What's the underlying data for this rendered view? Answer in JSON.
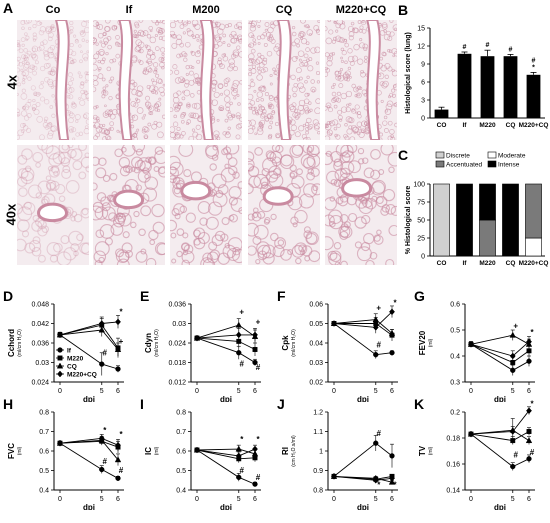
{
  "panels": {
    "A": "A",
    "B": "B",
    "C": "C",
    "D": "D",
    "E": "E",
    "F": "F",
    "G": "G",
    "H": "H",
    "I": "I",
    "J": "J",
    "K": "K"
  },
  "micrograph": {
    "columns": [
      "Co",
      "If",
      "M200",
      "CQ",
      "M220+CQ"
    ],
    "rows": [
      "4x",
      "40x"
    ],
    "colors": {
      "tissue": "#c98aa0",
      "background": "#f4ecef",
      "airway": "#ffffff"
    }
  },
  "chart_data": [
    {
      "id": "B",
      "type": "bar",
      "categories": [
        "CO",
        "If",
        "M220",
        "CQ",
        "M220+CQ"
      ],
      "values": [
        1.4,
        10.7,
        10.3,
        10.3,
        7.2
      ],
      "errors": [
        0.4,
        0.3,
        1.0,
        0.3,
        0.4
      ],
      "annotations": [
        "",
        "#",
        "#",
        "#",
        "#\n*"
      ],
      "ylabel": "Histological score (lung)",
      "ylim": [
        0,
        15
      ],
      "yticks": [
        0,
        3,
        6,
        9,
        12,
        15
      ],
      "colors": [
        "#000000",
        "#000000",
        "#000000",
        "#000000",
        "#000000"
      ]
    },
    {
      "id": "C",
      "type": "bar",
      "categories": [
        "CO",
        "If",
        "M220",
        "CQ",
        "M220+CQ"
      ],
      "series": [
        {
          "name": "Discrete",
          "color": "#d0d0d0",
          "values": [
            100,
            0,
            0,
            0,
            0
          ]
        },
        {
          "name": "Moderate",
          "color": "#ffffff",
          "values": [
            0,
            0,
            0,
            0,
            25
          ]
        },
        {
          "name": "Accentuated",
          "color": "#7a7a7a",
          "values": [
            0,
            0,
            50,
            0,
            75
          ]
        },
        {
          "name": "Intense",
          "color": "#000000",
          "values": [
            0,
            100,
            50,
            100,
            0
          ]
        }
      ],
      "stacked": true,
      "ylabel": "% Histological score",
      "ylim": [
        0,
        100
      ],
      "yticks": [
        0,
        25,
        50,
        75,
        100
      ],
      "legend": "top"
    },
    {
      "id": "D",
      "type": "line",
      "ylabel": "Cchord",
      "yunit": "(ml/cm H₂O)",
      "x": [
        0,
        5,
        6
      ],
      "ylim": [
        0.024,
        0.048
      ],
      "yticks": [
        0.024,
        0.03,
        0.036,
        0.042,
        0.048
      ],
      "series": [
        {
          "name": "If",
          "marker": "circle",
          "values": [
            0.0385,
            0.0295,
            0.028
          ],
          "err": [
            0.0008,
            0.0035,
            0.001
          ]
        },
        {
          "name": "M220",
          "marker": "square",
          "values": [
            0.0385,
            0.0415,
            0.0345
          ],
          "err": [
            0.0008,
            0.002,
            0.003
          ]
        },
        {
          "name": "CQ",
          "marker": "triangle",
          "values": [
            0.0385,
            0.04,
            0.034
          ],
          "err": [
            0.0008,
            0.002,
            0.002
          ]
        },
        {
          "name": "M220+CQ",
          "marker": "diamond",
          "values": [
            0.0385,
            0.042,
            0.0425
          ],
          "err": [
            0.0008,
            0.002,
            0.002
          ]
        }
      ],
      "annotations": [
        {
          "x": 5,
          "y": 0.033,
          "text": "#"
        },
        {
          "x": 6,
          "y": 0.0455,
          "text": "*"
        },
        {
          "x": 6,
          "y": 0.0365,
          "text": "+"
        }
      ]
    },
    {
      "id": "E",
      "type": "line",
      "ylabel": "Cdyn",
      "yunit": "(ml/cm H₂O)",
      "x": [
        0,
        5,
        6
      ],
      "ylim": [
        0.012,
        0.036
      ],
      "yticks": [
        0.012,
        0.018,
        0.024,
        0.03,
        0.036
      ],
      "series": [
        {
          "name": "If",
          "marker": "circle",
          "values": [
            0.0255,
            0.021,
            0.018
          ],
          "err": [
            0.0006,
            0.002,
            0.001
          ]
        },
        {
          "name": "M220",
          "marker": "square",
          "values": [
            0.0255,
            0.0245,
            0.022
          ],
          "err": [
            0.0006,
            0.002,
            0.002
          ]
        },
        {
          "name": "CQ",
          "marker": "triangle",
          "values": [
            0.0255,
            0.0295,
            0.026
          ],
          "err": [
            0.0006,
            0.002,
            0.002
          ]
        },
        {
          "name": "M220+CQ",
          "marker": "diamond",
          "values": [
            0.0255,
            0.0265,
            0.0265
          ],
          "err": [
            0.0006,
            0.002,
            0.002
          ]
        }
      ],
      "annotations": [
        {
          "x": 5,
          "y": 0.0335,
          "text": "+"
        },
        {
          "x": 5,
          "y": 0.0175,
          "text": "#"
        },
        {
          "x": 6,
          "y": 0.0305,
          "text": "+"
        },
        {
          "x": 6,
          "y": 0.0165,
          "text": "#"
        }
      ]
    },
    {
      "id": "F",
      "type": "line",
      "ylabel": "Cpk",
      "yunit": "(ml/cm H₂O)",
      "x": [
        0,
        5,
        6
      ],
      "ylim": [
        0.02,
        0.06
      ],
      "yticks": [
        0.02,
        0.03,
        0.04,
        0.05,
        0.06
      ],
      "series": [
        {
          "name": "If",
          "marker": "circle",
          "values": [
            0.05,
            0.034,
            0.035
          ],
          "err": [
            0.001,
            0.002,
            0.001
          ]
        },
        {
          "name": "M220",
          "marker": "square",
          "values": [
            0.05,
            0.05,
            0.044
          ],
          "err": [
            0.001,
            0.003,
            0.003
          ]
        },
        {
          "name": "CQ",
          "marker": "triangle",
          "values": [
            0.05,
            0.052,
            0.045
          ],
          "err": [
            0.001,
            0.003,
            0.002
          ]
        },
        {
          "name": "M220+CQ",
          "marker": "diamond",
          "values": [
            0.05,
            0.048,
            0.056
          ],
          "err": [
            0.001,
            0.003,
            0.003
          ]
        }
      ],
      "annotations": [
        {
          "x": 5,
          "y": 0.058,
          "text": "+"
        },
        {
          "x": 5,
          "y": 0.039,
          "text": "#"
        },
        {
          "x": 6,
          "y": 0.0605,
          "text": "*"
        }
      ]
    },
    {
      "id": "G",
      "type": "line",
      "ylabel": "FEV20",
      "yunit": "(ml)",
      "x": [
        0,
        5,
        6
      ],
      "ylim": [
        0.3,
        0.6
      ],
      "yticks": [
        0.3,
        0.4,
        0.5,
        0.6
      ],
      "series": [
        {
          "name": "If",
          "marker": "circle",
          "values": [
            0.445,
            0.345,
            0.38
          ],
          "err": [
            0.01,
            0.02,
            0.02
          ]
        },
        {
          "name": "M220",
          "marker": "square",
          "values": [
            0.445,
            0.375,
            0.42
          ],
          "err": [
            0.01,
            0.02,
            0.02
          ]
        },
        {
          "name": "CQ",
          "marker": "triangle",
          "values": [
            0.445,
            0.48,
            0.445
          ],
          "err": [
            0.01,
            0.02,
            0.02
          ]
        },
        {
          "name": "M220+CQ",
          "marker": "diamond",
          "values": [
            0.445,
            0.4,
            0.455
          ],
          "err": [
            0.01,
            0.02,
            0.02
          ]
        }
      ],
      "annotations": [
        {
          "x": 5,
          "y": 0.515,
          "text": "+"
        },
        {
          "x": 6,
          "y": 0.49,
          "text": "*"
        }
      ]
    },
    {
      "id": "H",
      "type": "line",
      "ylabel": "FVC",
      "yunit": "(ml)",
      "x": [
        0,
        5,
        6
      ],
      "ylim": [
        0.4,
        0.8
      ],
      "yticks": [
        0.4,
        0.5,
        0.6,
        0.7,
        0.8
      ],
      "series": [
        {
          "name": "If",
          "marker": "circle",
          "values": [
            0.64,
            0.505,
            0.46
          ],
          "err": [
            0.01,
            0.02,
            0.01
          ]
        },
        {
          "name": "M220",
          "marker": "square",
          "values": [
            0.64,
            0.65,
            0.62
          ],
          "err": [
            0.01,
            0.02,
            0.03
          ]
        },
        {
          "name": "CQ",
          "marker": "triangle",
          "values": [
            0.64,
            0.655,
            0.555
          ],
          "err": [
            0.01,
            0.02,
            0.03
          ]
        },
        {
          "name": "M220+CQ",
          "marker": "diamond",
          "values": [
            0.64,
            0.665,
            0.63
          ],
          "err": [
            0.01,
            0.02,
            0.03
          ]
        }
      ],
      "annotations": [
        {
          "x": 5,
          "y": 0.705,
          "text": "*"
        },
        {
          "x": 5,
          "y": 0.545,
          "text": "#"
        },
        {
          "x": 6,
          "y": 0.685,
          "text": "*"
        },
        {
          "x": 6,
          "y": 0.5,
          "text": "#"
        }
      ]
    },
    {
      "id": "I",
      "type": "line",
      "ylabel": "IC",
      "yunit": "(ml)",
      "x": [
        0,
        5,
        6
      ],
      "ylim": [
        0.4,
        0.8
      ],
      "yticks": [
        0.4,
        0.5,
        0.6,
        0.7,
        0.8
      ],
      "series": [
        {
          "name": "If",
          "marker": "circle",
          "values": [
            0.605,
            0.465,
            0.43
          ],
          "err": [
            0.01,
            0.02,
            0.01
          ]
        },
        {
          "name": "M220",
          "marker": "square",
          "values": [
            0.605,
            0.56,
            0.565
          ],
          "err": [
            0.01,
            0.02,
            0.02
          ]
        },
        {
          "name": "CQ",
          "marker": "triangle",
          "values": [
            0.605,
            0.61,
            0.585
          ],
          "err": [
            0.01,
            0.02,
            0.02
          ]
        },
        {
          "name": "M220+CQ",
          "marker": "diamond",
          "values": [
            0.605,
            0.575,
            0.61
          ],
          "err": [
            0.01,
            0.02,
            0.02
          ]
        }
      ],
      "annotations": [
        {
          "x": 5,
          "y": 0.66,
          "text": "*"
        },
        {
          "x": 5,
          "y": 0.5,
          "text": "#"
        },
        {
          "x": 6,
          "y": 0.66,
          "text": "*"
        },
        {
          "x": 6,
          "y": 0.465,
          "text": "#"
        }
      ]
    },
    {
      "id": "J",
      "type": "line",
      "ylabel": "RI",
      "yunit": "(cm H₂O.s/ml)",
      "x": [
        0,
        5,
        6
      ],
      "ylim": [
        0.8,
        1.2
      ],
      "yticks": [
        0.8,
        0.9,
        1.0,
        1.1,
        1.2
      ],
      "series": [
        {
          "name": "If",
          "marker": "circle",
          "values": [
            0.87,
            1.04,
            0.975
          ],
          "err": [
            0.01,
            0.04,
            0.06
          ]
        },
        {
          "name": "M220",
          "marker": "square",
          "values": [
            0.87,
            0.855,
            0.87
          ],
          "err": [
            0.01,
            0.01,
            0.01
          ]
        },
        {
          "name": "CQ",
          "marker": "triangle",
          "values": [
            0.87,
            0.86,
            0.84
          ],
          "err": [
            0.01,
            0.01,
            0.01
          ]
        },
        {
          "name": "M220+CQ",
          "marker": "diamond",
          "values": [
            0.87,
            0.85,
            0.86
          ],
          "err": [
            0.01,
            0.01,
            0.01
          ]
        }
      ],
      "annotations": [
        {
          "x": 5,
          "y": 1.09,
          "text": "#"
        },
        {
          "x": 5,
          "y": 0.825,
          "text": "*"
        },
        {
          "x": 6,
          "y": 0.825,
          "text": "*"
        }
      ]
    },
    {
      "id": "K",
      "type": "line",
      "ylabel": "TV",
      "yunit": "(ml)",
      "x": [
        0,
        5,
        6
      ],
      "ylim": [
        0.14,
        0.2
      ],
      "yticks": [
        0.14,
        0.16,
        0.18,
        0.2
      ],
      "series": [
        {
          "name": "If",
          "marker": "circle",
          "values": [
            0.183,
            0.158,
            0.164
          ],
          "err": [
            0.001,
            0.003,
            0.003
          ]
        },
        {
          "name": "M220",
          "marker": "square",
          "values": [
            0.183,
            0.178,
            0.185
          ],
          "err": [
            0.001,
            0.003,
            0.003
          ]
        },
        {
          "name": "CQ",
          "marker": "triangle",
          "values": [
            0.183,
            0.186,
            0.178
          ],
          "err": [
            0.001,
            0.003,
            0.003
          ]
        },
        {
          "name": "M220+CQ",
          "marker": "diamond",
          "values": [
            0.183,
            0.185,
            0.201
          ],
          "err": [
            0.001,
            0.01,
            0.003
          ]
        }
      ],
      "annotations": [
        {
          "x": 5,
          "y": 0.167,
          "text": "#"
        },
        {
          "x": 6,
          "y": 0.169,
          "text": "#"
        },
        {
          "x": 6,
          "y": 0.206,
          "text": "*"
        }
      ]
    }
  ],
  "line_common": {
    "xlabel": "dpi",
    "xticks": [
      "0",
      "5",
      "6"
    ]
  },
  "legend_D": [
    {
      "name": "If",
      "marker": "circle"
    },
    {
      "name": "M220",
      "marker": "square"
    },
    {
      "name": "CQ",
      "marker": "triangle"
    },
    {
      "name": "M220+CQ",
      "marker": "diamond"
    }
  ]
}
